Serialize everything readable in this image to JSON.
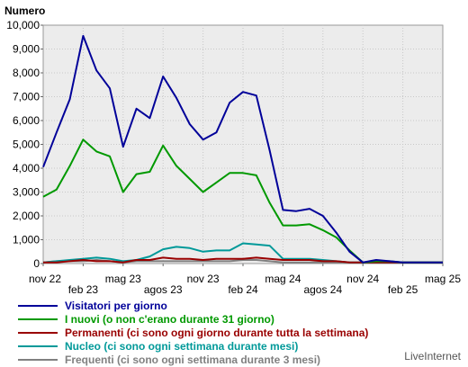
{
  "chart_data": {
    "type": "line",
    "ylabel": "Numero",
    "ylim": [
      0,
      10000
    ],
    "yticks": [
      "0",
      "1,000",
      "2,000",
      "3,000",
      "4,000",
      "5,000",
      "6,000",
      "7,000",
      "8,000",
      "9,000",
      "10,000"
    ],
    "x_tick_labels": [
      "nov 22",
      "feb 23",
      "mag 23",
      "agos 23",
      "nov 23",
      "feb 24",
      "mag 24",
      "agos 24",
      "nov 24",
      "feb 25",
      "mag 25"
    ],
    "x": [
      "nov 22",
      "dic 22",
      "gen 23",
      "feb 23",
      "mar 23",
      "apr 23",
      "mag 23",
      "giu 23",
      "lug 23",
      "agos 23",
      "set 23",
      "ott 23",
      "nov 23",
      "dic 23",
      "gen 24",
      "feb 24",
      "mar 24",
      "apr 24",
      "mag 24",
      "giu 24",
      "lug 24",
      "agos 24",
      "set 24",
      "ott 24",
      "nov 24",
      "dic 24",
      "gen 25",
      "feb 25",
      "mar 25",
      "apr 25",
      "mag 25"
    ],
    "series": [
      {
        "name": "Visitatori per giorno",
        "color": "#000099",
        "values": [
          4050,
          5500,
          6900,
          9550,
          8100,
          7350,
          4900,
          6500,
          6100,
          7850,
          6950,
          5850,
          5200,
          5500,
          6750,
          7200,
          7050,
          4750,
          2250,
          2200,
          2300,
          2000,
          1300,
          500,
          50,
          150,
          100,
          50,
          50,
          50,
          50
        ]
      },
      {
        "name": "I nuovi (o non c'erano durante 31 giorno)",
        "color": "#009900",
        "values": [
          2800,
          3100,
          4100,
          5200,
          4700,
          4500,
          3000,
          3750,
          3850,
          4950,
          4100,
          3550,
          3000,
          3400,
          3800,
          3800,
          3700,
          2550,
          1600,
          1600,
          1650,
          1400,
          1100,
          550,
          50,
          100,
          100,
          50,
          50,
          50,
          50
        ]
      },
      {
        "name": "Permanenti (ci sono ogni giorno durante tutta la settimana)",
        "color": "#990000",
        "values": [
          50,
          50,
          100,
          150,
          100,
          100,
          50,
          150,
          150,
          250,
          200,
          200,
          150,
          200,
          200,
          200,
          250,
          200,
          150,
          150,
          150,
          100,
          100,
          50,
          50,
          50,
          50,
          50,
          50,
          50,
          50
        ]
      },
      {
        "name": "Nucleo (ci sono ogni settimana durante mesi)",
        "color": "#009999",
        "values": [
          50,
          100,
          150,
          200,
          250,
          200,
          100,
          150,
          300,
          600,
          700,
          650,
          500,
          550,
          550,
          850,
          800,
          750,
          200,
          200,
          200,
          150,
          100,
          50,
          50,
          50,
          50,
          50,
          50,
          50,
          50
        ]
      },
      {
        "name": "Frequenti (ci sono ogni settimana durante 3 mesi)",
        "color": "#808080",
        "values": [
          50,
          100,
          100,
          100,
          150,
          100,
          50,
          100,
          100,
          100,
          100,
          100,
          100,
          100,
          100,
          150,
          150,
          100,
          50,
          50,
          50,
          50,
          50,
          50,
          50,
          50,
          50,
          50,
          50,
          50,
          50
        ]
      }
    ],
    "grid": true,
    "legend_position": "bottom"
  },
  "footer": {
    "credit": "LiveInternet"
  }
}
